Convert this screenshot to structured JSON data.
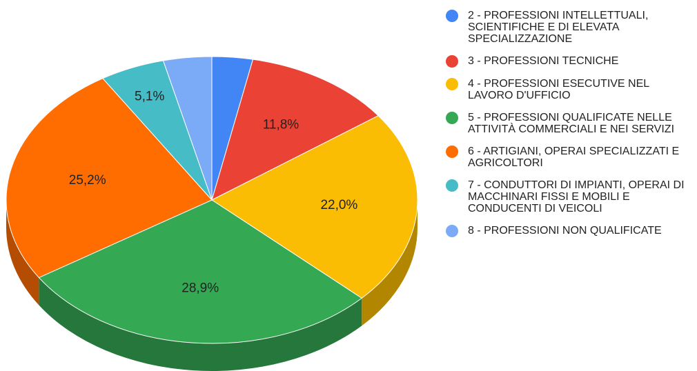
{
  "chart_data": {
    "type": "pie",
    "categories": [
      "2 - PROFESSIONI INTELLETTUALI, SCIENTIFICHE E DI ELEVATA SPECIALIZZAZIONE",
      "3 - PROFESSIONI TECNICHE",
      "4 - PROFESSIONI ESECUTIVE NEL LAVORO D'UFFICIO",
      "5 - PROFESSIONI QUALIFICATE NELLE ATTIVITÀ COMMERCIALI E NEI SERVIZI",
      "6 - ARTIGIANI, OPERAI SPECIALIZZATI E AGRICOLTORI",
      "7 - CONDUTTORI DI IMPIANTI, OPERAI DI MACCHINARI FISSI E MOBILI E CONDUCENTI DI VEICOLI",
      "8 - PROFESSIONI NON QUALIFICATE"
    ],
    "values": [
      3.2,
      11.8,
      22.0,
      28.9,
      25.2,
      5.1,
      3.8
    ],
    "value_labels": [
      null,
      "11,8%",
      "22,0%",
      "28,9%",
      "25,2%",
      "5,1%",
      null
    ],
    "colors": [
      "#4285f4",
      "#ea4335",
      "#fbbc04",
      "#34a853",
      "#ff6d01",
      "#46bdc6",
      "#7baaf7"
    ],
    "side_colors": [
      "#2f5fae",
      "#a53025",
      "#b38600",
      "#25773b",
      "#b44d01",
      "#32868c",
      "#5778ae"
    ],
    "legend": "right"
  }
}
